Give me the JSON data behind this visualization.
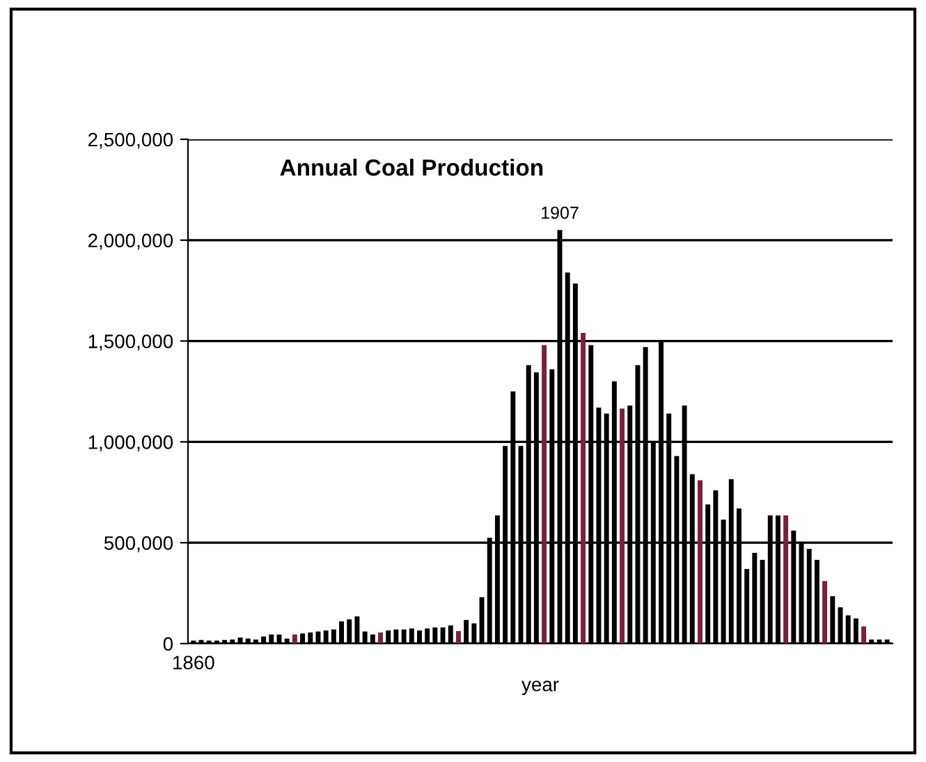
{
  "chart_data": {
    "type": "bar",
    "title": "Annual Coal Production",
    "xlabel": "year",
    "categories": [
      "1860",
      null,
      null,
      null,
      null,
      null,
      null,
      null,
      null,
      null,
      null,
      null,
      null,
      null,
      null,
      null,
      null,
      null,
      null,
      null,
      null,
      null,
      null,
      null,
      null,
      null,
      null,
      null,
      null,
      null,
      null,
      null,
      null,
      null,
      null,
      null,
      null,
      null,
      null,
      null,
      null,
      null,
      null,
      null,
      null,
      null,
      null,
      null,
      null,
      null,
      null,
      null,
      null,
      null,
      null,
      null,
      null,
      null,
      null,
      null,
      null,
      null,
      null,
      null,
      null,
      null,
      null,
      null,
      null,
      null,
      null,
      null,
      null,
      null,
      null,
      null,
      null,
      null,
      null,
      null,
      null,
      null,
      null,
      null,
      null,
      null,
      null,
      null,
      null,
      null
    ],
    "values": [
      15000,
      18000,
      15000,
      15000,
      18000,
      20000,
      30000,
      25000,
      20000,
      35000,
      45000,
      45000,
      25000,
      45000,
      50000,
      55000,
      60000,
      65000,
      70000,
      110000,
      120000,
      135000,
      60000,
      45000,
      55000,
      65000,
      70000,
      70000,
      75000,
      65000,
      75000,
      80000,
      80000,
      90000,
      62000,
      117000,
      100000,
      230000,
      525000,
      635000,
      980000,
      1250000,
      980000,
      1380000,
      1345000,
      1480000,
      1360000,
      2050000,
      1840000,
      1785000,
      1540000,
      1480000,
      1170000,
      1140000,
      1300000,
      1165000,
      1180000,
      1380000,
      1470000,
      1000000,
      1500000,
      1140000,
      930000,
      1180000,
      840000,
      810000,
      690000,
      760000,
      615000,
      815000,
      670000,
      370000,
      450000,
      415000,
      635000,
      635000,
      635000,
      560000,
      505000,
      470000,
      415000,
      310000,
      235000,
      180000,
      140000,
      125000,
      85000,
      20000,
      20000,
      20000
    ],
    "colors": [
      "#000000",
      "#000000",
      "#000000",
      "#000000",
      "#000000",
      "#000000",
      "#000000",
      "#000000",
      "#000000",
      "#000000",
      "#000000",
      "#000000",
      "#000000",
      "#7a1f3d",
      "#000000",
      "#000000",
      "#000000",
      "#000000",
      "#000000",
      "#000000",
      "#000000",
      "#000000",
      "#000000",
      "#000000",
      "#7a1f3d",
      "#000000",
      "#000000",
      "#000000",
      "#000000",
      "#000000",
      "#000000",
      "#000000",
      "#000000",
      "#000000",
      "#7a1f3d",
      "#000000",
      "#000000",
      "#000000",
      "#000000",
      "#000000",
      "#000000",
      "#000000",
      "#000000",
      "#000000",
      "#000000",
      "#7a1f3d",
      "#000000",
      "#000000",
      "#000000",
      "#000000",
      "#7a1f3d",
      "#000000",
      "#000000",
      "#000000",
      "#000000",
      "#7a1f3d",
      "#000000",
      "#000000",
      "#000000",
      "#000000",
      "#000000",
      "#000000",
      "#000000",
      "#000000",
      "#000000",
      "#7a1f3d",
      "#000000",
      "#000000",
      "#000000",
      "#000000",
      "#000000",
      "#000000",
      "#000000",
      "#000000",
      "#000000",
      "#000000",
      "#7a1f3d",
      "#000000",
      "#000000",
      "#000000",
      "#000000",
      "#7a1f3d",
      "#000000",
      "#000000",
      "#000000",
      "#000000",
      "#7a1f3d",
      "#000000",
      "#000000",
      "#000000"
    ],
    "ylim": [
      0,
      2500000
    ],
    "yticks": [
      {
        "value": 0,
        "label": "0"
      },
      {
        "value": 500000,
        "label": "500,000"
      },
      {
        "value": 1000000,
        "label": "1,000,000"
      },
      {
        "value": 1500000,
        "label": "1,500,000"
      },
      {
        "value": 2000000,
        "label": "2,000,000"
      },
      {
        "value": 2500000,
        "label": "2,500,000"
      }
    ],
    "grid": "y",
    "annotations": [
      {
        "text": "1907",
        "y": 2050000
      }
    ]
  }
}
